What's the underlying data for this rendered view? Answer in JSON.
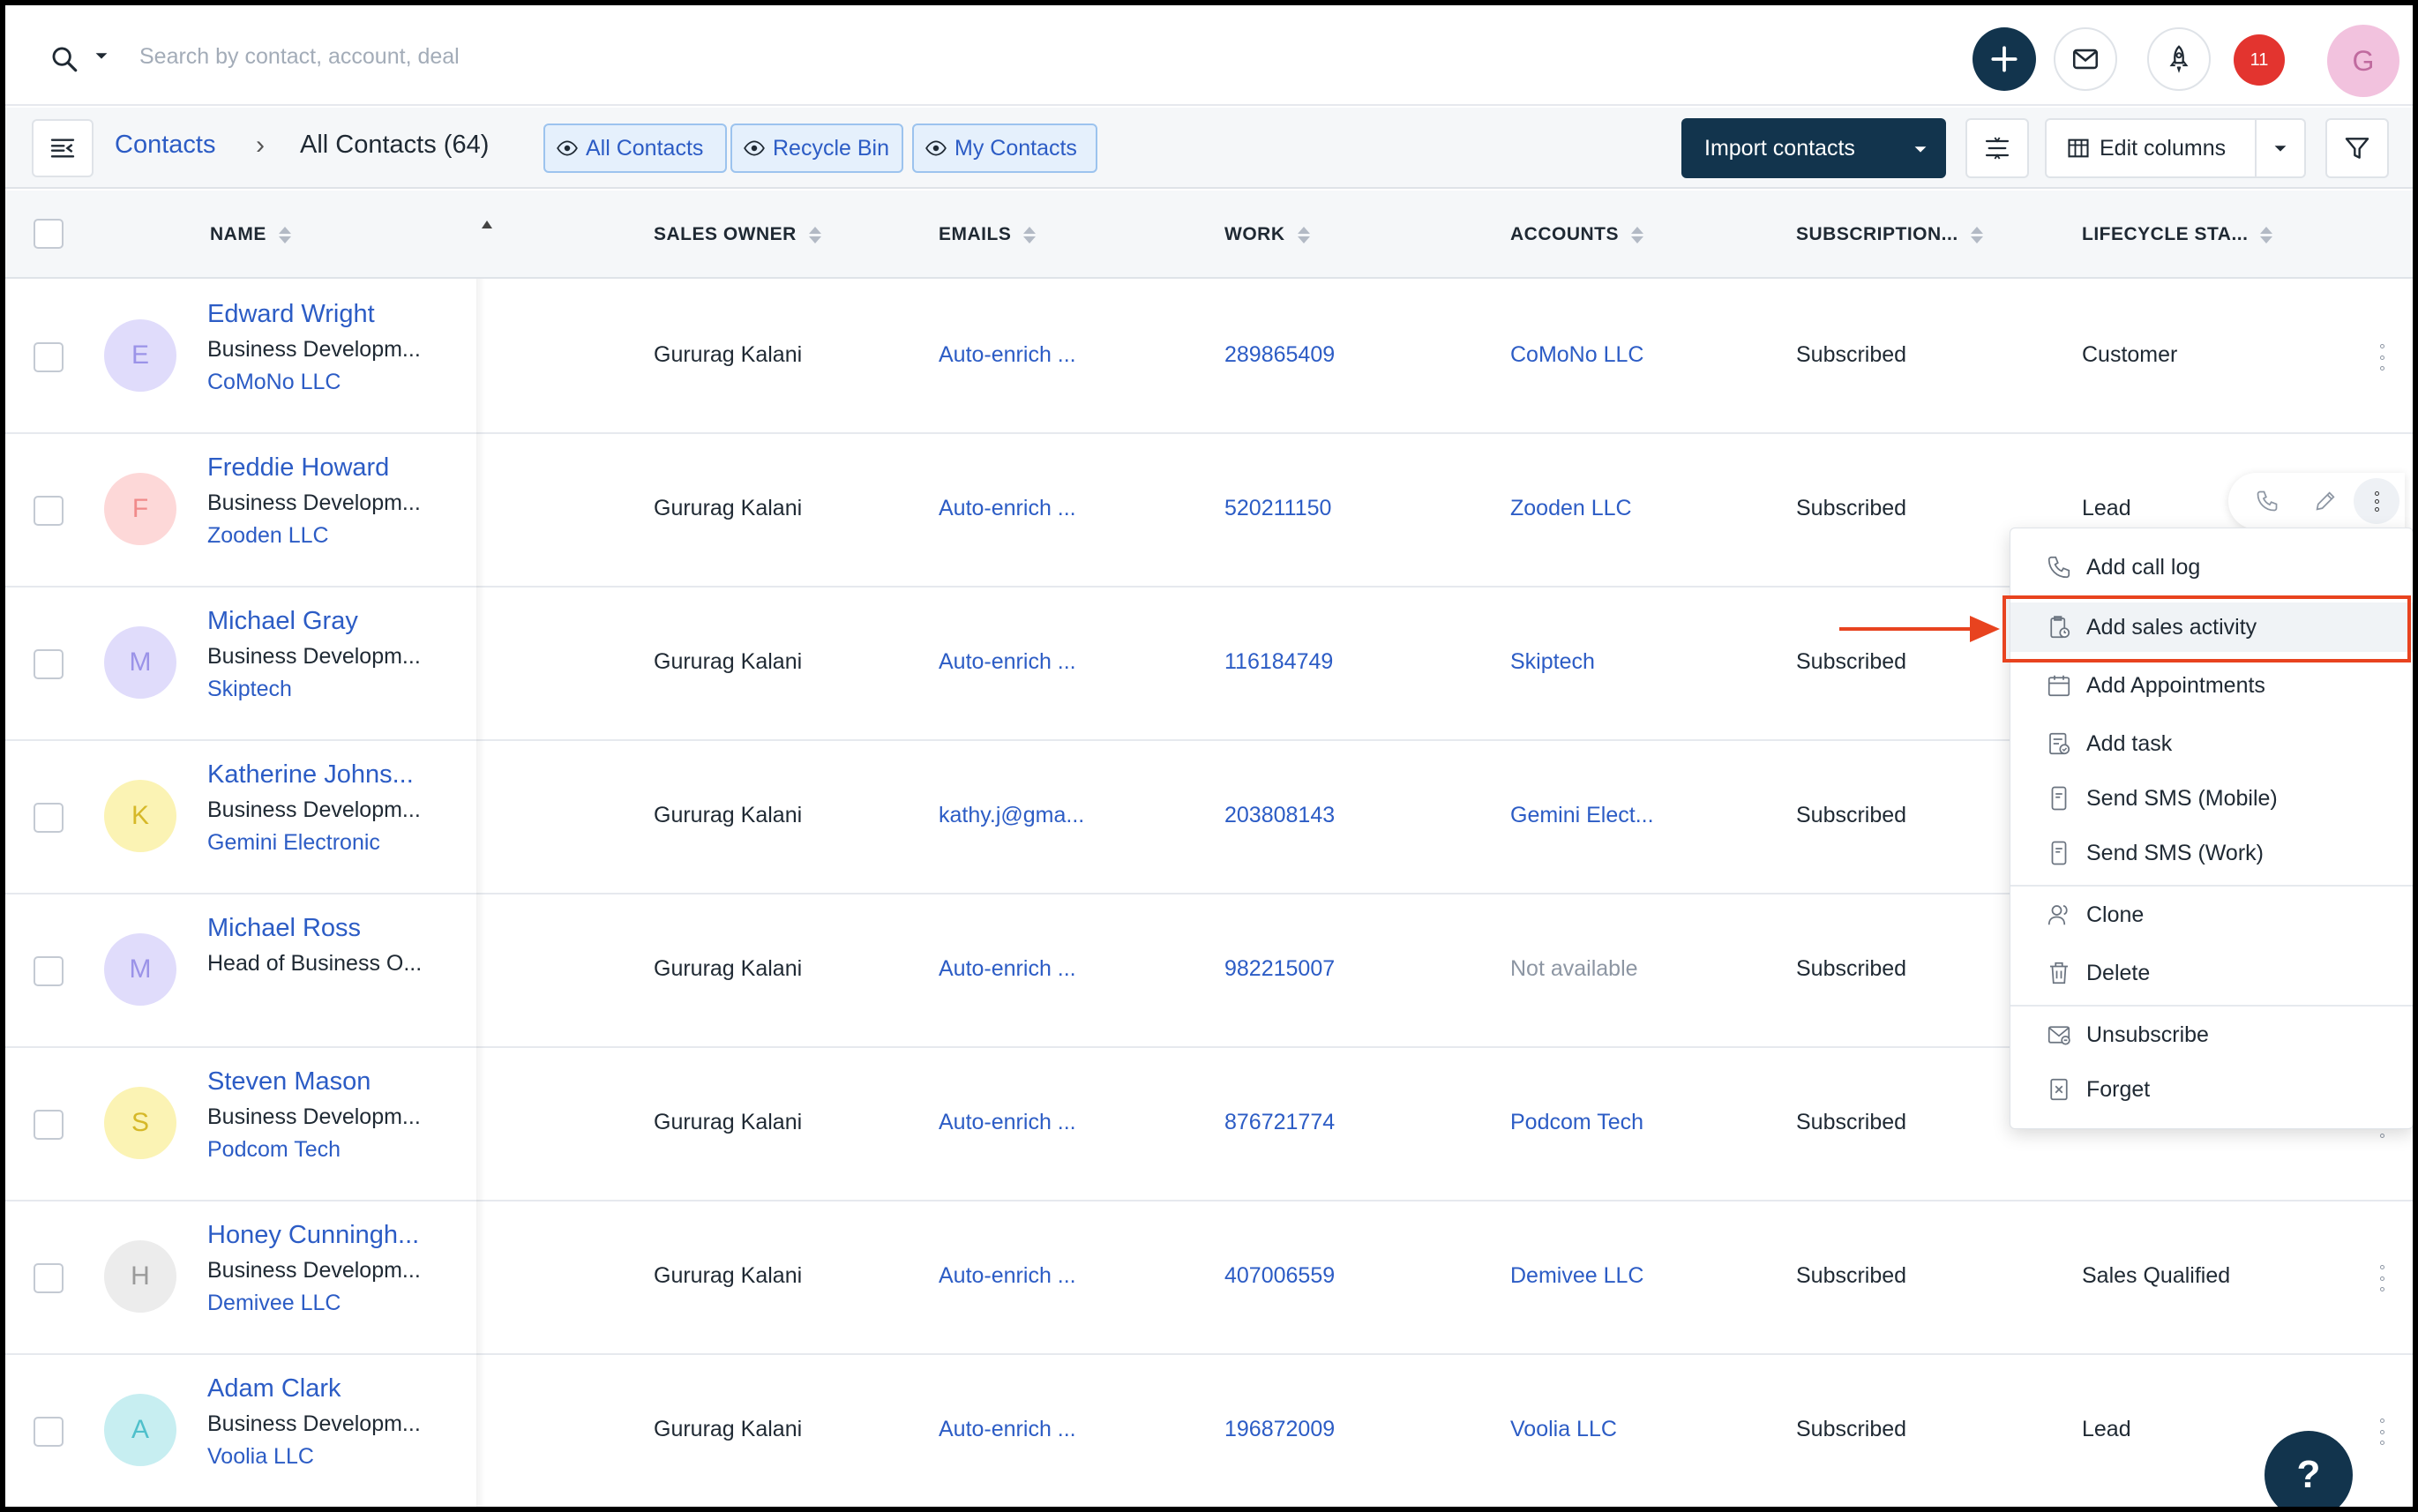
{
  "topbar": {
    "search_placeholder": "Search by contact, account, deal",
    "notification_count": "11",
    "user_initial": "G"
  },
  "toolbar": {
    "breadcrumb_link": "Contacts",
    "breadcrumb_sep": "›",
    "breadcrumb_current": "All Contacts (64)",
    "views": [
      "All Contacts",
      "Recycle Bin",
      "My Contacts"
    ],
    "import_label": "Import contacts",
    "edit_columns_label": "Edit columns"
  },
  "columns": [
    "NAME",
    "SALES OWNER",
    "EMAILS",
    "WORK",
    "ACCOUNTS",
    "SUBSCRIPTION...",
    "LIFECYCLE STA..."
  ],
  "rows": [
    {
      "initial": "E",
      "name": "Edward Wright",
      "job": "Business Developm...",
      "company": "CoMoNo LLC",
      "owner": "Gururag Kalani",
      "email": "Auto-enrich ...",
      "work": "289865409",
      "account": "CoMoNo LLC",
      "subscription": "Subscribed",
      "lifecycle": "Customer",
      "avatar_bg": "#e0dcfb",
      "avatar_fg": "#9b93e8"
    },
    {
      "initial": "F",
      "name": "Freddie Howard",
      "job": "Business Developm...",
      "company": "Zooden LLC",
      "owner": "Gururag Kalani",
      "email": "Auto-enrich ...",
      "work": "520211150",
      "account": "Zooden LLC",
      "subscription": "Subscribed",
      "lifecycle": "Lead",
      "avatar_bg": "#fdd8d8",
      "avatar_fg": "#f08a8a"
    },
    {
      "initial": "M",
      "name": "Michael Gray",
      "job": "Business Developm...",
      "company": "Skiptech",
      "owner": "Gururag Kalani",
      "email": "Auto-enrich ...",
      "work": "116184749",
      "account": "Skiptech",
      "subscription": "Subscribed",
      "lifecycle": "",
      "avatar_bg": "#e0dcfb",
      "avatar_fg": "#9b93e8"
    },
    {
      "initial": "K",
      "name": "Katherine Johns...",
      "job": "Business Developm...",
      "company": "Gemini Electronic",
      "owner": "Gururag Kalani",
      "email": "kathy.j@gma...",
      "work": "203808143",
      "account": "Gemini Elect...",
      "subscription": "Subscribed",
      "lifecycle": "",
      "avatar_bg": "#fbf3b4",
      "avatar_fg": "#d6b828"
    },
    {
      "initial": "M",
      "name": "Michael Ross",
      "job": "Head of Business O...",
      "company": "",
      "owner": "Gururag Kalani",
      "email": "Auto-enrich ...",
      "work": "982215007",
      "account": "Not available",
      "subscription": "Subscribed",
      "lifecycle": "",
      "avatar_bg": "#e0dcfb",
      "avatar_fg": "#9b93e8"
    },
    {
      "initial": "S",
      "name": "Steven Mason",
      "job": "Business Developm...",
      "company": "Podcom Tech",
      "owner": "Gururag Kalani",
      "email": "Auto-enrich ...",
      "work": "876721774",
      "account": "Podcom Tech",
      "subscription": "Subscribed",
      "lifecycle": "",
      "avatar_bg": "#fbf3b4",
      "avatar_fg": "#d6b828"
    },
    {
      "initial": "H",
      "name": "Honey Cunningh...",
      "job": "Business Developm...",
      "company": "Demivee LLC",
      "owner": "Gururag Kalani",
      "email": "Auto-enrich ...",
      "work": "407006559",
      "account": "Demivee LLC",
      "subscription": "Subscribed",
      "lifecycle": "Sales Qualified",
      "avatar_bg": "#ececec",
      "avatar_fg": "#9a9a9a"
    },
    {
      "initial": "A",
      "name": "Adam Clark",
      "job": "Business Developm...",
      "company": "Voolia LLC",
      "owner": "Gururag Kalani",
      "email": "Auto-enrich ...",
      "work": "196872009",
      "account": "Voolia LLC",
      "subscription": "Subscribed",
      "lifecycle": "Lead",
      "avatar_bg": "#c7eef1",
      "avatar_fg": "#4fc0cb"
    }
  ],
  "menu": {
    "items": [
      "Add call log",
      "Add sales activity",
      "Add Appointments",
      "Add task",
      "Send SMS (Mobile)",
      "Send SMS (Work)",
      "Clone",
      "Delete",
      "Unsubscribe",
      "Forget"
    ],
    "highlighted_index": 1
  },
  "help_label": "?",
  "colors": {
    "brand_dark": "#12344d",
    "link_blue": "#2c5cc5",
    "annotation_red": "#e8431f",
    "notification_red": "#e3342f"
  }
}
